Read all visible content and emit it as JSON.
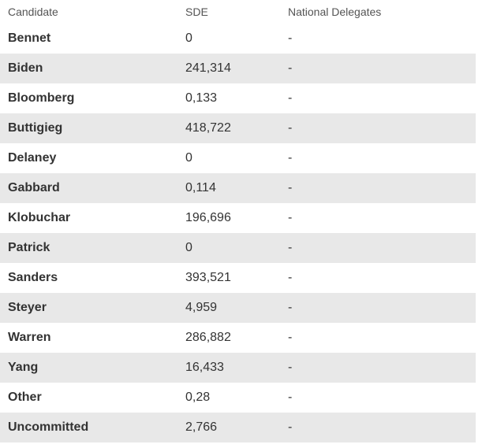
{
  "chart_data": {
    "type": "table",
    "title": "",
    "columns": [
      "Candidate",
      "SDE",
      "National Delegates"
    ],
    "rows": [
      [
        "Bennet",
        "0",
        "-"
      ],
      [
        "Biden",
        "241,314",
        "-"
      ],
      [
        "Bloomberg",
        "0,133",
        "-"
      ],
      [
        "Buttigieg",
        "418,722",
        "-"
      ],
      [
        "Delaney",
        "0",
        "-"
      ],
      [
        "Gabbard",
        "0,114",
        "-"
      ],
      [
        "Klobuchar",
        "196,696",
        "-"
      ],
      [
        "Patrick",
        "0",
        "-"
      ],
      [
        "Sanders",
        "393,521",
        "-"
      ],
      [
        "Steyer",
        "4,959",
        "-"
      ],
      [
        "Warren",
        "286,882",
        "-"
      ],
      [
        "Yang",
        "16,433",
        "-"
      ],
      [
        "Other",
        "0,28",
        "-"
      ],
      [
        "Uncommitted",
        "2,766",
        "-"
      ]
    ],
    "layout": {
      "zebra_striping": true,
      "striped_row_parity": "even",
      "stripe_color": "#e8e8e8",
      "header_text_color": "#545454",
      "body_text_color": "#333333",
      "grid": false,
      "column_alignment": [
        "left",
        "left",
        "left"
      ]
    }
  }
}
